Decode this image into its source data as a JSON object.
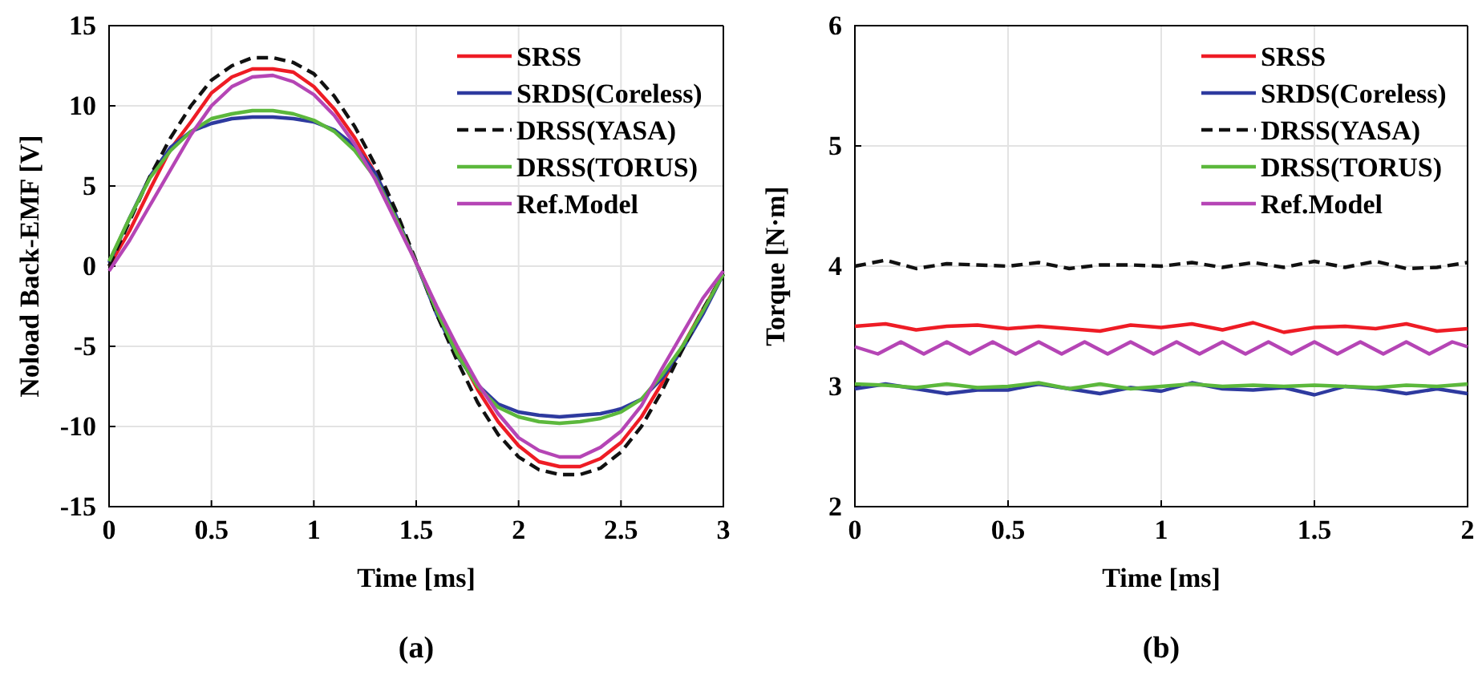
{
  "chart_data": [
    {
      "type": "line",
      "title": "(a)",
      "xlabel": "Time [ms]",
      "ylabel": "Noload Back-EMF [V]",
      "x": [
        0,
        0.1,
        0.2,
        0.3,
        0.4,
        0.5,
        0.6,
        0.7,
        0.8,
        0.9,
        1,
        1.1,
        1.2,
        1.3,
        1.4,
        1.5,
        1.6,
        1.7,
        1.8,
        1.9,
        2,
        2.1,
        2.2,
        2.3,
        2.4,
        2.5,
        2.6,
        2.7,
        2.8,
        2.9,
        3
      ],
      "xlim": [
        0,
        3
      ],
      "xticks": [
        0,
        0.5,
        1,
        1.5,
        2,
        2.5,
        3
      ],
      "ylim": [
        -15,
        15
      ],
      "yticks": [
        -15,
        -10,
        -5,
        0,
        5,
        10,
        15
      ],
      "grid": true,
      "legend": "top right",
      "series": [
        {
          "name": "SRSS",
          "color": "#ee1c25",
          "line_style": "solid",
          "values": [
            0,
            2.2,
            4.8,
            7.3,
            9.0,
            10.8,
            11.8,
            12.3,
            12.3,
            12.1,
            11.2,
            9.8,
            8.0,
            5.8,
            3.1,
            0.2,
            -2.6,
            -5.3,
            -7.7,
            -9.7,
            -11.2,
            -12.2,
            -12.5,
            -12.5,
            -12.0,
            -11.0,
            -9.4,
            -7.3,
            -5.0,
            -2.7,
            -0.5
          ]
        },
        {
          "name": "SRDS(Coreless)",
          "color": "#2e3a9f",
          "line_style": "solid",
          "values": [
            0.2,
            3.0,
            5.6,
            7.4,
            8.4,
            8.9,
            9.2,
            9.3,
            9.3,
            9.2,
            9.0,
            8.5,
            7.5,
            5.8,
            3.2,
            0.2,
            -3.0,
            -5.6,
            -7.4,
            -8.6,
            -9.1,
            -9.3,
            -9.4,
            -9.3,
            -9.2,
            -8.9,
            -8.3,
            -7.0,
            -5.2,
            -3.0,
            -0.5
          ]
        },
        {
          "name": "DRSS(YASA)",
          "color": "#111111",
          "line_style": "dashed",
          "values": [
            0,
            2.8,
            5.6,
            8.0,
            10.0,
            11.6,
            12.5,
            13.0,
            13.0,
            12.7,
            12.0,
            10.6,
            8.7,
            6.3,
            3.5,
            0.3,
            -3.0,
            -5.9,
            -8.5,
            -10.5,
            -11.9,
            -12.7,
            -13.0,
            -13.0,
            -12.6,
            -11.6,
            -10.0,
            -7.8,
            -5.2,
            -2.7,
            -0.5
          ]
        },
        {
          "name": "DRSS(TORUS)",
          "color": "#5cb83c",
          "line_style": "solid",
          "values": [
            0.3,
            3.0,
            5.5,
            7.2,
            8.4,
            9.2,
            9.5,
            9.7,
            9.7,
            9.5,
            9.1,
            8.4,
            7.2,
            5.5,
            3.0,
            0.2,
            -2.8,
            -5.5,
            -7.5,
            -8.8,
            -9.4,
            -9.7,
            -9.8,
            -9.7,
            -9.5,
            -9.1,
            -8.3,
            -6.8,
            -5.0,
            -2.8,
            -0.5
          ]
        },
        {
          "name": "Ref.Model",
          "color": "#b545b5",
          "line_style": "solid",
          "values": [
            -0.3,
            1.6,
            3.8,
            6.0,
            8.2,
            10.0,
            11.2,
            11.8,
            11.9,
            11.5,
            10.7,
            9.4,
            7.6,
            5.4,
            2.8,
            0.2,
            -2.5,
            -5.0,
            -7.3,
            -9.2,
            -10.7,
            -11.5,
            -11.9,
            -11.9,
            -11.3,
            -10.3,
            -8.7,
            -6.4,
            -4.2,
            -2.0,
            -0.3
          ]
        }
      ]
    },
    {
      "type": "line",
      "title": "(b)",
      "xlabel": "Time [ms]",
      "ylabel": "Torque [N·m]",
      "x": [
        0,
        0.1,
        0.2,
        0.3,
        0.4,
        0.5,
        0.6,
        0.7,
        0.8,
        0.9,
        1,
        1.1,
        1.2,
        1.3,
        1.4,
        1.5,
        1.6,
        1.7,
        1.8,
        1.9,
        2
      ],
      "xlim": [
        0,
        2
      ],
      "xticks": [
        0,
        0.5,
        1,
        1.5,
        2
      ],
      "ylim": [
        2,
        6
      ],
      "yticks": [
        2,
        3,
        4,
        5,
        6
      ],
      "grid": true,
      "legend": "top right",
      "series": [
        {
          "name": "SRSS",
          "color": "#ee1c25",
          "line_style": "solid",
          "values": [
            3.5,
            3.52,
            3.47,
            3.5,
            3.51,
            3.48,
            3.5,
            3.48,
            3.46,
            3.51,
            3.49,
            3.52,
            3.47,
            3.53,
            3.45,
            3.49,
            3.5,
            3.48,
            3.52,
            3.46,
            3.48
          ]
        },
        {
          "name": "SRDS(Coreless)",
          "color": "#2e3a9f",
          "line_style": "solid",
          "values": [
            2.98,
            3.02,
            2.98,
            2.94,
            2.97,
            2.97,
            3.02,
            2.98,
            2.94,
            2.99,
            2.96,
            3.03,
            2.98,
            2.97,
            2.99,
            2.93,
            3.0,
            2.98,
            2.94,
            2.98,
            2.94
          ]
        },
        {
          "name": "DRSS(YASA)",
          "color": "#111111",
          "line_style": "dashed",
          "values": [
            4.0,
            4.05,
            3.98,
            4.02,
            4.01,
            4.0,
            4.03,
            3.98,
            4.01,
            4.01,
            4.0,
            4.03,
            3.99,
            4.03,
            3.99,
            4.04,
            3.99,
            4.04,
            3.98,
            3.99,
            4.03
          ]
        },
        {
          "name": "DRSS(TORUS)",
          "color": "#5cb83c",
          "line_style": "solid",
          "values": [
            3.02,
            3.01,
            2.99,
            3.02,
            2.99,
            3.0,
            3.03,
            2.98,
            3.02,
            2.98,
            3.0,
            3.02,
            3.0,
            3.01,
            3.0,
            3.01,
            3.0,
            2.99,
            3.01,
            3.0,
            3.02
          ]
        },
        {
          "name": "Ref.Model",
          "color": "#b545b5",
          "line_style": "solid",
          "x": [
            0,
            0.075,
            0.15,
            0.225,
            0.3,
            0.375,
            0.45,
            0.525,
            0.6,
            0.675,
            0.75,
            0.825,
            0.9,
            0.975,
            1.05,
            1.125,
            1.2,
            1.275,
            1.35,
            1.425,
            1.5,
            1.575,
            1.65,
            1.725,
            1.8,
            1.875,
            1.95,
            2
          ],
          "values": [
            3.33,
            3.27,
            3.37,
            3.27,
            3.37,
            3.27,
            3.37,
            3.27,
            3.37,
            3.27,
            3.37,
            3.27,
            3.37,
            3.27,
            3.37,
            3.27,
            3.37,
            3.27,
            3.37,
            3.27,
            3.37,
            3.27,
            3.37,
            3.27,
            3.37,
            3.27,
            3.37,
            3.33
          ]
        }
      ]
    }
  ]
}
